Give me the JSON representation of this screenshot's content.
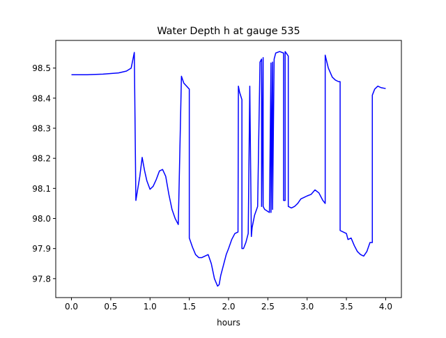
{
  "chart_data": {
    "type": "line",
    "title": "Water Depth h at gauge 535",
    "xlabel": "hours",
    "ylabel": "",
    "xlim": [
      -0.2,
      4.2
    ],
    "ylim": [
      97.737,
      98.592
    ],
    "xticks": [
      0.0,
      0.5,
      1.0,
      1.5,
      2.0,
      2.5,
      3.0,
      3.5,
      4.0
    ],
    "xtick_labels": [
      "0.0",
      "0.5",
      "1.0",
      "1.5",
      "2.0",
      "2.5",
      "3.0",
      "3.5",
      "4.0"
    ],
    "yticks": [
      97.8,
      97.9,
      98.0,
      98.1,
      98.2,
      98.3,
      98.4,
      98.5
    ],
    "ytick_labels": [
      "97.8",
      "97.9",
      "98.0",
      "98.1",
      "98.2",
      "98.3",
      "98.4",
      "98.5"
    ],
    "grid": false,
    "series": [
      {
        "color": "#0000ff",
        "x": [
          0.0,
          0.2,
          0.4,
          0.6,
          0.7,
          0.76,
          0.8,
          0.82,
          0.82,
          0.87,
          0.9,
          0.93,
          0.96,
          1.0,
          1.04,
          1.08,
          1.12,
          1.16,
          1.2,
          1.24,
          1.28,
          1.32,
          1.36,
          1.4,
          1.43,
          1.43,
          1.5,
          1.5,
          1.54,
          1.58,
          1.62,
          1.66,
          1.7,
          1.74,
          1.78,
          1.82,
          1.86,
          1.88,
          1.9,
          1.93,
          1.97,
          2.0,
          2.04,
          2.08,
          2.12,
          2.125,
          2.125,
          2.14,
          2.17,
          2.17,
          2.19,
          2.22,
          2.25,
          2.27,
          2.29,
          2.29,
          2.3,
          2.33,
          2.37,
          2.4,
          2.4,
          2.42,
          2.42,
          2.44,
          2.44,
          2.46,
          2.52,
          2.54,
          2.54,
          2.56,
          2.56,
          2.58,
          2.58,
          2.6,
          2.6,
          2.65,
          2.7,
          2.7,
          2.72,
          2.72,
          2.76,
          2.76,
          2.8,
          2.84,
          2.88,
          2.92,
          2.96,
          3.0,
          3.05,
          3.1,
          3.15,
          3.2,
          3.23,
          3.23,
          3.27,
          3.32,
          3.36,
          3.4,
          3.42,
          3.42,
          3.46,
          3.5,
          3.52,
          3.56,
          3.6,
          3.64,
          3.68,
          3.72,
          3.76,
          3.8,
          3.83,
          3.83,
          3.86,
          3.9,
          3.94,
          4.0
        ],
        "y": [
          98.478,
          98.478,
          98.48,
          98.484,
          98.49,
          98.5,
          98.552,
          98.06,
          98.06,
          98.14,
          98.203,
          98.16,
          98.125,
          98.097,
          98.107,
          98.13,
          98.158,
          98.163,
          98.14,
          98.08,
          98.03,
          98.0,
          97.98,
          98.473,
          98.45,
          98.45,
          98.43,
          97.935,
          97.905,
          97.88,
          97.87,
          97.87,
          97.875,
          97.88,
          97.85,
          97.8,
          97.775,
          97.78,
          97.81,
          97.84,
          97.88,
          97.9,
          97.93,
          97.95,
          97.955,
          98.44,
          98.44,
          98.42,
          98.395,
          97.9,
          97.9,
          97.92,
          97.95,
          98.44,
          97.94,
          97.94,
          97.97,
          98.01,
          98.04,
          98.52,
          98.52,
          98.53,
          98.04,
          98.535,
          98.04,
          98.03,
          98.02,
          98.517,
          98.02,
          98.52,
          98.03,
          98.53,
          98.53,
          98.55,
          98.55,
          98.555,
          98.55,
          98.06,
          98.06,
          98.555,
          98.54,
          98.04,
          98.035,
          98.04,
          98.05,
          98.065,
          98.07,
          98.075,
          98.08,
          98.095,
          98.085,
          98.06,
          98.05,
          98.543,
          98.5,
          98.47,
          98.46,
          98.455,
          98.455,
          97.96,
          97.955,
          97.95,
          97.93,
          97.935,
          97.91,
          97.89,
          97.88,
          97.875,
          97.89,
          97.92,
          97.92,
          98.41,
          98.43,
          98.44,
          98.435,
          98.432
        ]
      }
    ]
  }
}
